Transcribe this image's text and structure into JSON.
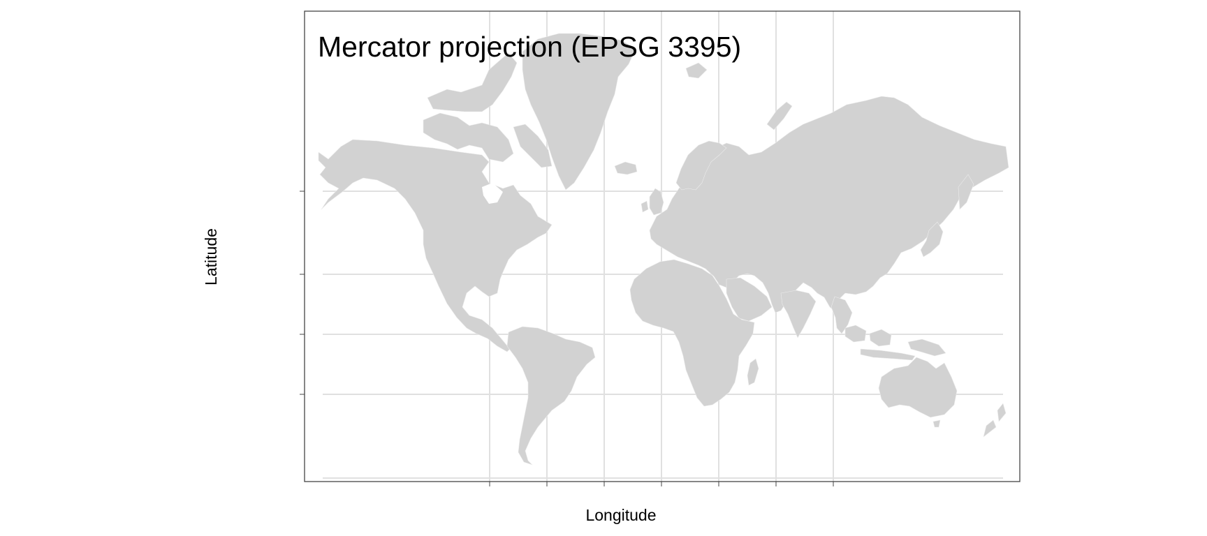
{
  "map": {
    "title": "Mercator projection (EPSG 3395)",
    "x_label": "Longitude",
    "y_label": "Latitude",
    "land_color": "#d2d2d2",
    "border_color": "#ececec",
    "grid_color": "#e0e0e0",
    "background": "#ffffff",
    "graticule_shown": true,
    "tick_labels_shown": false
  }
}
